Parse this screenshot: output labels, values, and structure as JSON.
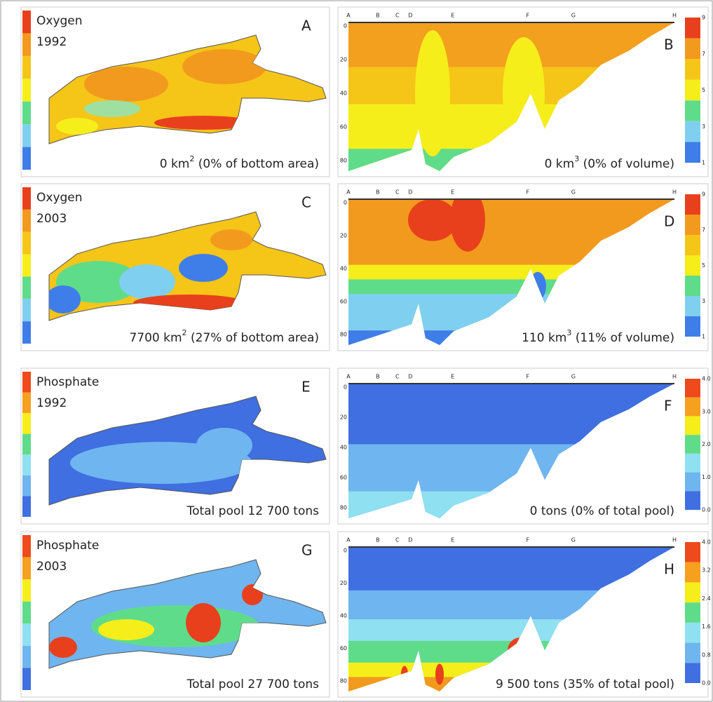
{
  "figure": {
    "panels": [
      {
        "letter": "A",
        "title": [
          "Oxygen",
          "1992"
        ],
        "caption": [
          "0 km",
          "2",
          " (0% of bottom area)"
        ]
      },
      {
        "letter": "B",
        "stations": [
          "A",
          "B",
          "C",
          "D",
          "E",
          "F",
          "G",
          "H"
        ],
        "depth_ticks": [
          "0",
          "20",
          "40",
          "60",
          "80"
        ],
        "colorbar_ticks": [
          "9",
          "7",
          "5",
          "3",
          "1"
        ],
        "caption": [
          "0 km",
          "3",
          " (0% of volume)"
        ]
      },
      {
        "letter": "C",
        "title": [
          "Oxygen",
          "2003"
        ],
        "caption": [
          "7700 km",
          "2",
          " (27% of bottom area)"
        ]
      },
      {
        "letter": "D",
        "stations": [
          "A",
          "B",
          "C",
          "D",
          "E",
          "F",
          "G",
          "H"
        ],
        "depth_ticks": [
          "0",
          "20",
          "40",
          "60",
          "80"
        ],
        "colorbar_ticks": [
          "9",
          "7",
          "5",
          "3",
          "1"
        ],
        "caption": [
          "110 km",
          "3",
          " (11% of volume)"
        ]
      },
      {
        "letter": "E",
        "title": [
          "Phosphate",
          "1992"
        ],
        "caption": [
          "Total pool 12 700 tons"
        ]
      },
      {
        "letter": "F",
        "stations": [
          "A",
          "B",
          "C",
          "D",
          "E",
          "F",
          "G",
          "H"
        ],
        "depth_ticks": [
          "0",
          "20",
          "40",
          "60",
          "80"
        ],
        "colorbar_ticks": [
          "4.0",
          "3.0",
          "2.0",
          "1.0",
          "0.0"
        ],
        "caption": [
          "0 tons (0% of total pool)"
        ]
      },
      {
        "letter": "G",
        "title": [
          "Phosphate",
          "2003"
        ],
        "caption": [
          "Total pool 27 700 tons"
        ]
      },
      {
        "letter": "H",
        "stations": [
          "A",
          "B",
          "C",
          "D",
          "E",
          "F",
          "G",
          "H"
        ],
        "depth_ticks": [
          "0",
          "20",
          "40",
          "60",
          "80"
        ],
        "colorbar_ticks": [
          "4.0",
          "3.2",
          "2.4",
          "1.6",
          "0.8",
          "0.0"
        ],
        "caption": [
          "9 500 tons (35% of total pool)"
        ]
      }
    ]
  }
}
